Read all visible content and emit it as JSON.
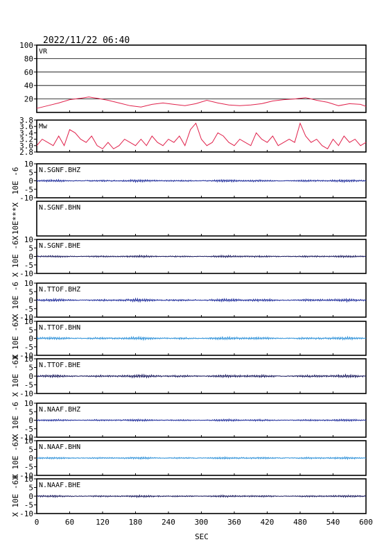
{
  "header": {
    "timestamp": "2022/11/22 06:40"
  },
  "colors": {
    "frame": "#000000",
    "vr_line": "#e0204a",
    "mw_line": "#e0204a",
    "bhz": "#1c2a9a",
    "bhn": "#2a8fd8",
    "bhe": "#14145a"
  },
  "chart_data": {
    "type": "line",
    "xlabel": "SEC",
    "xlim": [
      0,
      600
    ],
    "xticks": [
      0,
      60,
      120,
      180,
      240,
      300,
      360,
      420,
      480,
      540,
      600
    ],
    "panels": [
      {
        "label": "VR",
        "ylim": [
          0,
          100
        ],
        "yticks": [
          20,
          40,
          60,
          80,
          100
        ],
        "ytick_labels": [
          "20",
          "40",
          "60",
          "80",
          "100"
        ],
        "grid": true,
        "ylabel": "",
        "series": {
          "x": [
            0,
            20,
            40,
            60,
            80,
            95,
            110,
            130,
            150,
            170,
            190,
            210,
            230,
            250,
            270,
            290,
            310,
            330,
            350,
            370,
            390,
            410,
            430,
            450,
            470,
            490,
            510,
            530,
            550,
            570,
            590,
            600
          ],
          "y": [
            6,
            10,
            14,
            19,
            21,
            23,
            21,
            18,
            14,
            10,
            8,
            12,
            14,
            12,
            10,
            13,
            18,
            14,
            11,
            10,
            11,
            13,
            17,
            19,
            20,
            22,
            18,
            15,
            10,
            13,
            12,
            9
          ]
        }
      },
      {
        "label": "Mw",
        "ylim": [
          2.8,
          3.8
        ],
        "yticks": [
          2.8,
          3.0,
          3.2,
          3.4,
          3.6,
          3.8
        ],
        "ytick_labels": [
          "2.8",
          "3.0",
          "3.2",
          "3.4",
          "3.6",
          "3.8"
        ],
        "grid": false,
        "ylabel": "",
        "series": {
          "x": [
            0,
            10,
            20,
            30,
            40,
            50,
            60,
            70,
            80,
            90,
            100,
            110,
            120,
            130,
            140,
            150,
            160,
            170,
            180,
            190,
            200,
            210,
            220,
            230,
            240,
            250,
            260,
            270,
            280,
            290,
            300,
            310,
            320,
            330,
            340,
            350,
            360,
            370,
            380,
            390,
            400,
            410,
            420,
            430,
            440,
            450,
            460,
            470,
            480,
            490,
            500,
            510,
            520,
            530,
            540,
            550,
            560,
            570,
            580,
            590,
            600
          ],
          "y": [
            3.0,
            3.2,
            3.1,
            3.0,
            3.3,
            3.0,
            3.5,
            3.4,
            3.2,
            3.1,
            3.3,
            3.0,
            2.9,
            3.1,
            2.9,
            3.0,
            3.2,
            3.1,
            3.0,
            3.2,
            3.0,
            3.3,
            3.1,
            3.0,
            3.2,
            3.1,
            3.3,
            3.0,
            3.5,
            3.7,
            3.2,
            3.0,
            3.1,
            3.4,
            3.3,
            3.1,
            3.0,
            3.2,
            3.1,
            3.0,
            3.4,
            3.2,
            3.1,
            3.3,
            3.0,
            3.1,
            3.2,
            3.1,
            3.7,
            3.3,
            3.1,
            3.2,
            3.0,
            2.9,
            3.2,
            3.0,
            3.3,
            3.1,
            3.2,
            3.0,
            3.1
          ]
        }
      },
      {
        "label": "N.SGNF.BHZ",
        "ylim": [
          -10,
          10
        ],
        "yticks": [
          -10,
          -5,
          0,
          5,
          10
        ],
        "ytick_labels": [
          "-10",
          "-5",
          "0",
          "5",
          "10"
        ],
        "grid": false,
        "ylabel": "10E -6",
        "color_key": "bhz",
        "amplitude": 0.6,
        "waveform": true
      },
      {
        "label": "N.SGNF.BHN",
        "ylim": [
          -10,
          10
        ],
        "yticks": [],
        "ytick_labels": [],
        "grid": false,
        "ylabel": "10E***X",
        "color_key": "bhn",
        "amplitude": 0,
        "waveform": false
      },
      {
        "label": "N.SGNF.BHE",
        "ylim": [
          -10,
          10
        ],
        "yticks": [
          -10,
          -5,
          0,
          5,
          10
        ],
        "ytick_labels": [
          "-10",
          "-5",
          "0",
          "5",
          "10"
        ],
        "grid": false,
        "ylabel": "X 10E -6X",
        "color_key": "bhe",
        "amplitude": 0.5,
        "waveform": true
      },
      {
        "label": "N.TTOF.BHZ",
        "ylim": [
          -10,
          10
        ],
        "yticks": [
          -10,
          -5,
          0,
          5,
          10
        ],
        "ytick_labels": [
          "-10",
          "-5",
          "0",
          "5",
          "10"
        ],
        "grid": false,
        "ylabel": "X 10E -6",
        "color_key": "bhz",
        "amplitude": 0.7,
        "waveform": true
      },
      {
        "label": "N.TTOF.BHN",
        "ylim": [
          -10,
          10
        ],
        "yticks": [
          -10,
          -5,
          0,
          5,
          10
        ],
        "ytick_labels": [
          "-10",
          "-5",
          "0",
          "5",
          "10"
        ],
        "grid": false,
        "ylabel": "X 10E -6X",
        "color_key": "bhn",
        "amplitude": 0.7,
        "waveform": true
      },
      {
        "label": "N.TTOF.BHE",
        "ylim": [
          -10,
          10
        ],
        "yticks": [
          -10,
          -5,
          0,
          5,
          10
        ],
        "ytick_labels": [
          "-10",
          "-5",
          "0",
          "5",
          "10"
        ],
        "grid": false,
        "ylabel": "X 10E -6X",
        "color_key": "bhe",
        "amplitude": 0.7,
        "waveform": true
      },
      {
        "label": "N.NAAF.BHZ",
        "ylim": [
          -10,
          10
        ],
        "yticks": [
          -10,
          -5,
          0,
          5,
          10
        ],
        "ytick_labels": [
          "-10",
          "-5",
          "0",
          "5",
          "10"
        ],
        "grid": false,
        "ylabel": "X 10E -6",
        "color_key": "bhz",
        "amplitude": 0.5,
        "waveform": true
      },
      {
        "label": "N.NAAF.BHN",
        "ylim": [
          -10,
          10
        ],
        "yticks": [
          -10,
          -5,
          0,
          5,
          10
        ],
        "ytick_labels": [
          "-10",
          "-5",
          "0",
          "5",
          "10"
        ],
        "grid": false,
        "ylabel": "X 10E -6X",
        "color_key": "bhn",
        "amplitude": 0.5,
        "waveform": true
      },
      {
        "label": "N.NAAF.BHE",
        "ylim": [
          -10,
          10
        ],
        "yticks": [
          -10,
          -5,
          0,
          5,
          10
        ],
        "ytick_labels": [
          "-10",
          "-5",
          "0",
          "5",
          "10"
        ],
        "grid": false,
        "ylabel": "X 10E -6X",
        "color_key": "bhe",
        "amplitude": 0.5,
        "waveform": true
      }
    ]
  }
}
